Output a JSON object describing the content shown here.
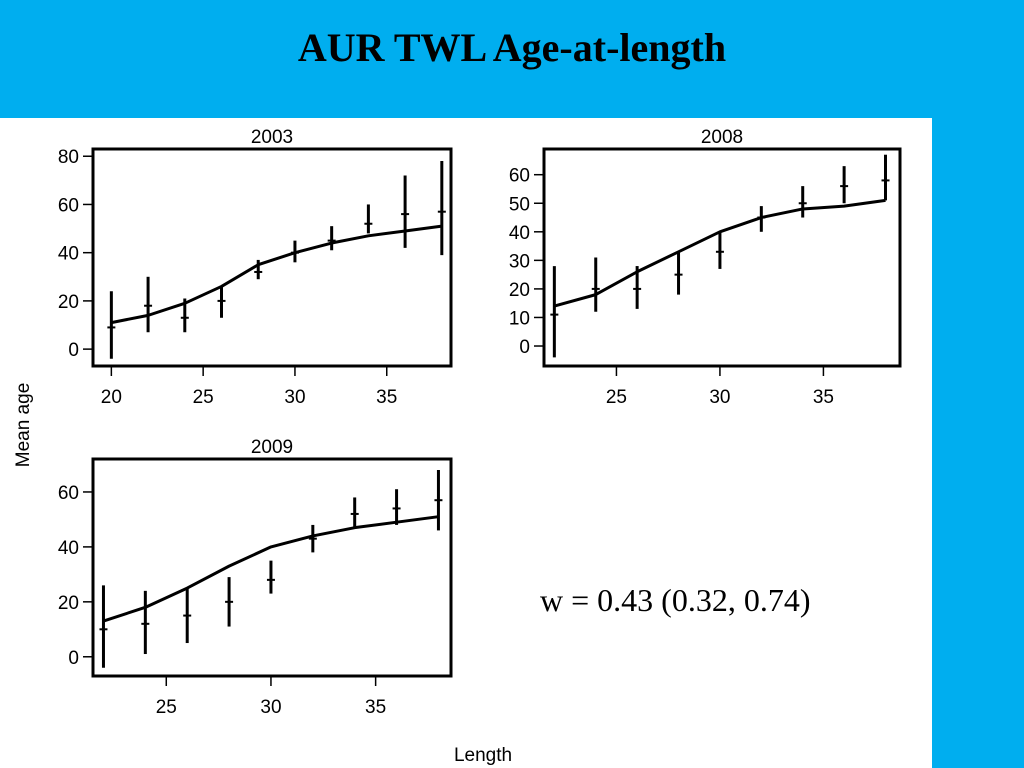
{
  "slide": {
    "title": "AUR TWL Age-at-length",
    "annotation": "w = 0.43 (0.32, 0.74)",
    "background_color": "#00aeef",
    "panel_color": "#ffffff"
  },
  "chart_data": [
    {
      "type": "line",
      "title": "2003",
      "xlabel": "Length",
      "ylabel": "Mean age",
      "xlim": [
        19,
        38.5
      ],
      "ylim": [
        -7,
        83
      ],
      "xticks": [
        20,
        25,
        30,
        35
      ],
      "yticks": [
        0,
        20,
        40,
        60,
        80
      ],
      "fit_line": {
        "x": [
          20,
          22,
          24,
          26,
          28,
          30,
          32,
          34,
          36,
          38
        ],
        "y": [
          11,
          14,
          19,
          26,
          35,
          40,
          44,
          47,
          49,
          51
        ]
      },
      "observations": {
        "x": [
          20,
          22,
          24,
          26,
          28,
          30,
          32,
          34,
          36,
          38
        ],
        "mean": [
          9,
          18,
          13,
          20,
          32,
          40,
          45,
          52,
          56,
          57
        ],
        "low": [
          -4,
          7,
          7,
          13,
          29,
          36,
          41,
          48,
          42,
          39
        ],
        "high": [
          24,
          30,
          21,
          26,
          37,
          45,
          51,
          60,
          72,
          78
        ]
      }
    },
    {
      "type": "line",
      "title": "2008",
      "xlabel": "Length",
      "ylabel": "Mean age",
      "xlim": [
        21.5,
        38.7
      ],
      "ylim": [
        -7,
        69
      ],
      "xticks": [
        25,
        30,
        35
      ],
      "yticks": [
        0,
        10,
        20,
        30,
        40,
        50,
        60
      ],
      "fit_line": {
        "x": [
          22,
          24,
          26,
          28,
          30,
          32,
          34,
          36,
          38
        ],
        "y": [
          14,
          18,
          26,
          33,
          40,
          45,
          48,
          49,
          51
        ]
      },
      "observations": {
        "x": [
          22,
          24,
          26,
          28,
          30,
          32,
          34,
          36,
          38
        ],
        "mean": [
          11,
          20,
          20,
          25,
          33,
          45,
          50,
          56,
          58
        ],
        "low": [
          -4,
          12,
          13,
          18,
          27,
          40,
          45,
          50,
          51
        ],
        "high": [
          28,
          31,
          28,
          33,
          40,
          49,
          56,
          63,
          67
        ]
      }
    },
    {
      "type": "line",
      "title": "2009",
      "xlabel": "Length",
      "ylabel": "Mean age",
      "xlim": [
        21.5,
        38.6
      ],
      "ylim": [
        -7,
        72
      ],
      "xticks": [
        25,
        30,
        35
      ],
      "yticks": [
        0,
        20,
        40,
        60
      ],
      "fit_line": {
        "x": [
          22,
          24,
          26,
          28,
          30,
          32,
          34,
          36,
          38
        ],
        "y": [
          13,
          18,
          25,
          33,
          40,
          44,
          47,
          49,
          51
        ]
      },
      "observations": {
        "x": [
          22,
          24,
          26,
          28,
          30,
          32,
          34,
          36,
          38
        ],
        "mean": [
          10,
          12,
          15,
          20,
          28,
          43,
          52,
          54,
          57
        ],
        "low": [
          -4,
          1,
          5,
          11,
          23,
          38,
          47,
          48,
          46
        ],
        "high": [
          26,
          24,
          25,
          29,
          35,
          48,
          58,
          61,
          68
        ]
      }
    }
  ]
}
